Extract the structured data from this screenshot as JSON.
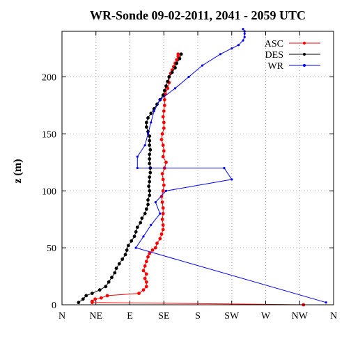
{
  "chart_data": {
    "type": "line",
    "title": "WR-Sonde 09-02-2011, 2041 - 2059 UTC",
    "xlabel": "",
    "ylabel": "z (m)",
    "x_ticks": [
      {
        "value": 0,
        "label": "N"
      },
      {
        "value": 45,
        "label": "NE"
      },
      {
        "value": 90,
        "label": "E"
      },
      {
        "value": 135,
        "label": "SE"
      },
      {
        "value": 180,
        "label": "S"
      },
      {
        "value": 225,
        "label": "SW"
      },
      {
        "value": 270,
        "label": "W"
      },
      {
        "value": 315,
        "label": "NW"
      },
      {
        "value": 360,
        "label": "N"
      }
    ],
    "y_ticks": [
      0,
      50,
      100,
      150,
      200
    ],
    "xlim": [
      0,
      360
    ],
    "ylim": [
      0,
      240
    ],
    "grid": true,
    "legend_position": "top-right",
    "series": [
      {
        "name": "ASC",
        "color": "#ff0000",
        "x": [
          320,
          40,
          40,
          44,
          52,
          60,
          102,
          108,
          112,
          112,
          110,
          112,
          108,
          110,
          112,
          114,
          116,
          120,
          124,
          126,
          130,
          132,
          134,
          134,
          133,
          134,
          134,
          133,
          132,
          134,
          135,
          134,
          133,
          136,
          138,
          134,
          135,
          134,
          132,
          133,
          135,
          135,
          134,
          135,
          136,
          136,
          137,
          140,
          142,
          142,
          144,
          146,
          148,
          150,
          152,
          154,
          154
        ],
        "y": [
          0,
          2,
          3,
          5,
          6,
          8,
          10,
          13,
          16,
          20,
          23,
          27,
          30,
          34,
          38,
          42,
          45,
          48,
          50,
          54,
          58,
          62,
          66,
          70,
          75,
          80,
          85,
          90,
          95,
          100,
          105,
          110,
          115,
          120,
          125,
          130,
          135,
          140,
          145,
          150,
          155,
          160,
          165,
          170,
          175,
          180,
          185,
          190,
          195,
          200,
          203,
          206,
          209,
          212,
          215,
          218,
          220
        ]
      },
      {
        "name": "DES",
        "color": "#000000",
        "x": [
          22,
          28,
          32,
          40,
          50,
          58,
          62,
          66,
          70,
          72,
          76,
          80,
          84,
          86,
          88,
          92,
          96,
          98,
          100,
          104,
          106,
          110,
          112,
          114,
          114,
          116,
          116,
          115,
          116,
          116,
          117,
          117,
          116,
          116,
          116,
          117,
          116,
          116,
          116,
          114,
          112,
          112,
          114,
          118,
          122,
          126,
          130,
          134,
          136,
          138,
          140,
          142,
          146,
          150,
          152,
          156,
          158
        ],
        "y": [
          2,
          5,
          8,
          10,
          13,
          16,
          20,
          24,
          28,
          32,
          36,
          40,
          44,
          48,
          52,
          56,
          60,
          64,
          68,
          72,
          76,
          80,
          84,
          88,
          92,
          96,
          100,
          104,
          108,
          112,
          116,
          120,
          124,
          128,
          132,
          136,
          140,
          144,
          148,
          152,
          156,
          160,
          164,
          168,
          172,
          176,
          180,
          184,
          188,
          192,
          196,
          200,
          204,
          208,
          212,
          216,
          220
        ]
      },
      {
        "name": "WR",
        "color": "#0000ff",
        "x": [
          350,
          98,
          108,
          118,
          130,
          124,
          138,
          225,
          215,
          100,
          100,
          110,
          114,
          118,
          122,
          130,
          150,
          168,
          186,
          210,
          225,
          234,
          240,
          242,
          242,
          242,
          240
        ],
        "y": [
          2,
          50,
          60,
          70,
          80,
          90,
          100,
          110,
          120,
          120,
          130,
          140,
          150,
          160,
          170,
          180,
          190,
          200,
          210,
          220,
          225,
          228,
          232,
          235,
          238,
          240,
          242
        ]
      }
    ]
  }
}
